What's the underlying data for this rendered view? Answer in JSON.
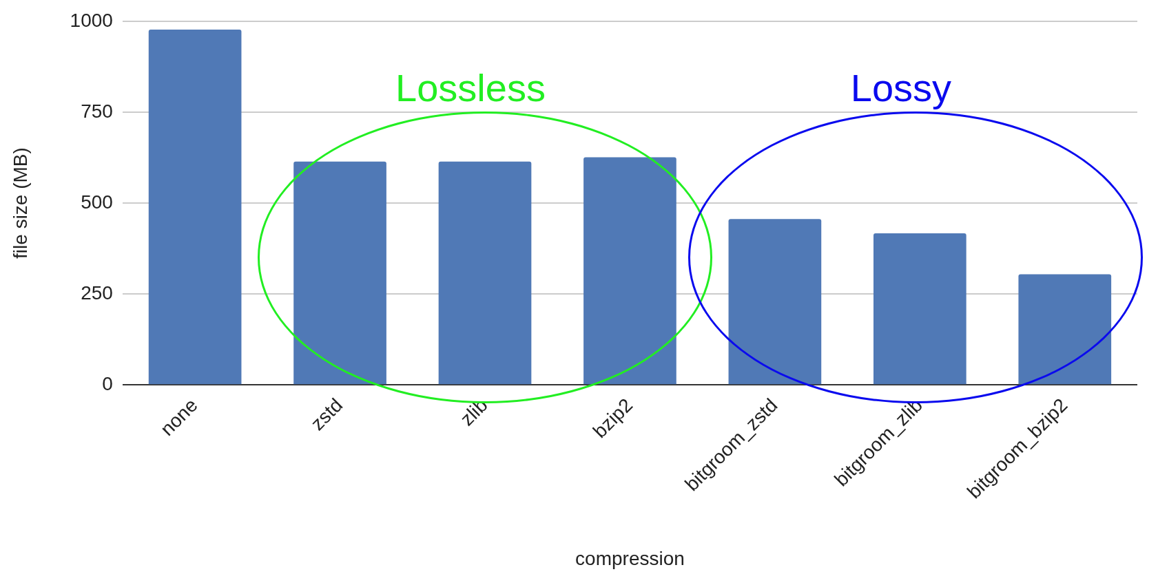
{
  "chart_data": {
    "type": "bar",
    "xlabel": "compression",
    "ylabel": "file size (MB)",
    "categories": [
      "none",
      "zstd",
      "zlib",
      "bzip2",
      "bitgroom_zstd",
      "bitgroom_zlib",
      "bitgroom_bzip2"
    ],
    "values": [
      977,
      614,
      614,
      626,
      456,
      417,
      304
    ],
    "color": "#5079b6",
    "ylim": [
      0,
      1000
    ],
    "yticks": [
      0,
      250,
      500,
      750,
      1000
    ],
    "grid": "y",
    "annotations": [
      "Lossless",
      "Lossy"
    ]
  }
}
